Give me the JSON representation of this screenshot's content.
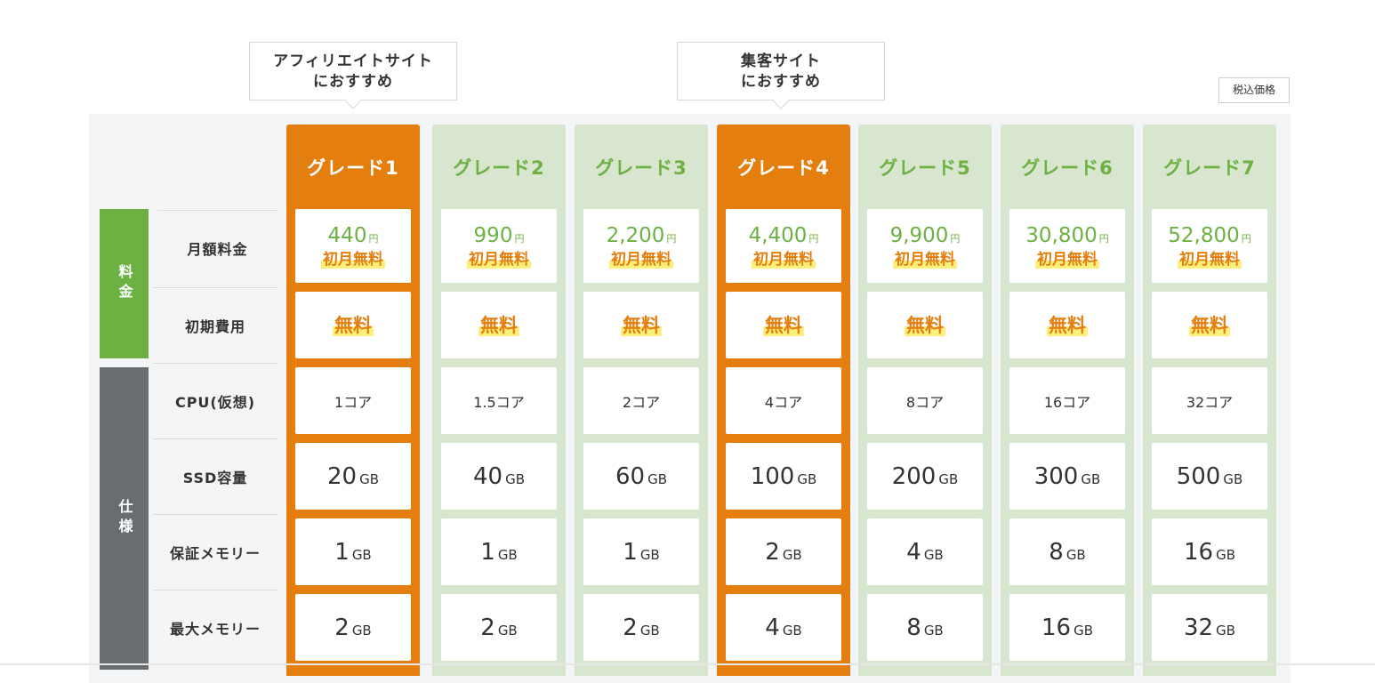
{
  "recommendations": [
    {
      "line1": "アフィリエイトサイト",
      "line2": "におすすめ"
    },
    {
      "line1": "集客サイト",
      "line2": "におすすめ"
    }
  ],
  "tax_label": "税込価格",
  "categories": {
    "price": "料金",
    "spec": "仕様"
  },
  "row_labels": [
    "月額料金",
    "初期費用",
    "CPU(仮想)",
    "SSD容量",
    "保証メモリー",
    "最大メモリー"
  ],
  "yen": "円",
  "first_month_label": "初月無料",
  "free_label": "無料",
  "gb": "GB",
  "grades": [
    {
      "name": "グレード1",
      "price": "440",
      "cpu": "1コア",
      "ssd": "20",
      "mem": "1",
      "max_mem": "2",
      "highlight": true
    },
    {
      "name": "グレード2",
      "price": "990",
      "cpu": "1.5コア",
      "ssd": "40",
      "mem": "1",
      "max_mem": "2",
      "highlight": false
    },
    {
      "name": "グレード3",
      "price": "2,200",
      "cpu": "2コア",
      "ssd": "60",
      "mem": "1",
      "max_mem": "2",
      "highlight": false
    },
    {
      "name": "グレード4",
      "price": "4,400",
      "cpu": "4コア",
      "ssd": "100",
      "mem": "2",
      "max_mem": "4",
      "highlight": true
    },
    {
      "name": "グレード5",
      "price": "9,900",
      "cpu": "8コア",
      "ssd": "200",
      "mem": "4",
      "max_mem": "8",
      "highlight": false
    },
    {
      "name": "グレード6",
      "price": "30,800",
      "cpu": "16コア",
      "ssd": "300",
      "mem": "8",
      "max_mem": "16",
      "highlight": false
    },
    {
      "name": "グレード7",
      "price": "52,800",
      "cpu": "32コア",
      "ssd": "500",
      "mem": "16",
      "max_mem": "32",
      "highlight": false
    }
  ],
  "colors": {
    "highlight": "#e47f0f",
    "green": "#6db143",
    "column_bg": "#d8e6d0",
    "spec_category": "#6a6d70",
    "marker": "#fbef7e"
  }
}
